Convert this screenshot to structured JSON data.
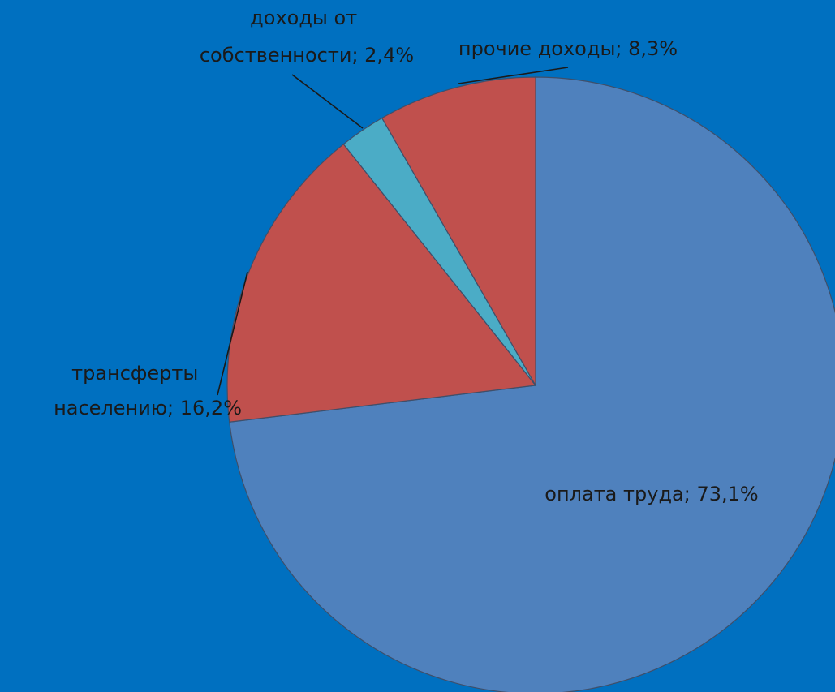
{
  "colors": {
    "background": "#0070c0",
    "slice_labor": "#4f81bd",
    "slice_red": "#c0504d",
    "slice_property": "#4bacc6"
  },
  "chart_data": {
    "type": "pie",
    "title": "",
    "start_angle_deg": 0,
    "direction": "clockwise",
    "slices": [
      {
        "label": "оплата труда; 73,1%",
        "category": "оплата труда",
        "value": 73.1,
        "color": "#4f81bd"
      },
      {
        "label": "трансферты населению; 16,2%",
        "category": "трансферты населению",
        "value": 16.2,
        "color": "#c0504d"
      },
      {
        "label": "доходы от собственности; 2,4%",
        "category": "доходы от собственности",
        "value": 2.4,
        "color": "#4bacc6"
      },
      {
        "label": "прочие доходы;  8,3%",
        "category": "прочие доходы",
        "value": 8.3,
        "color": "#c0504d"
      }
    ]
  }
}
